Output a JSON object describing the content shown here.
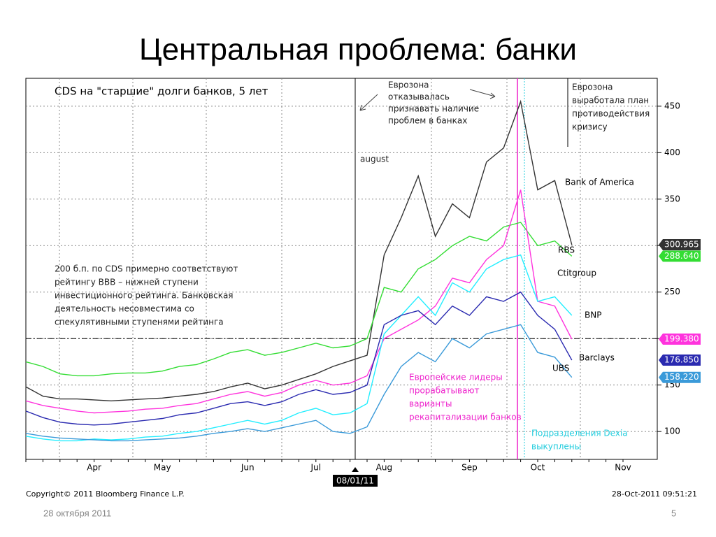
{
  "slide": {
    "title": "Центральная проблема: банки",
    "date": "28 октября 2011",
    "page": "5"
  },
  "chart_data": {
    "type": "line",
    "title": "CDS на \"старшие\" долги банков, 5 лет",
    "categories": [
      null,
      null,
      null,
      null,
      "Apr",
      null,
      null,
      null,
      "May",
      null,
      null,
      null,
      null,
      "Jun",
      null,
      null,
      null,
      "Jul",
      null,
      null,
      null,
      "Aug",
      null,
      null,
      null,
      null,
      "Sep",
      null,
      null,
      null,
      "Oct",
      null,
      null,
      null,
      null,
      "Nov"
    ],
    "series": [
      {
        "name": "Bank of America",
        "color": "#333333",
        "end_label": "300.965",
        "values": [
          148,
          138,
          135,
          135,
          134,
          133,
          134,
          135,
          136,
          138,
          140,
          143,
          148,
          152,
          146,
          150,
          156,
          162,
          170,
          176,
          182,
          290,
          330,
          375,
          310,
          345,
          330,
          390,
          405,
          455,
          360,
          370,
          300.965,
          null,
          null,
          null
        ]
      },
      {
        "name": "RBS",
        "color": "#33dd33",
        "end_label": "288.640",
        "values": [
          175,
          170,
          162,
          160,
          160,
          162,
          163,
          163,
          165,
          170,
          172,
          178,
          185,
          188,
          182,
          185,
          190,
          195,
          190,
          192,
          200,
          255,
          250,
          275,
          285,
          300,
          310,
          305,
          320,
          325,
          300,
          305,
          288.64,
          null,
          null,
          null
        ]
      },
      {
        "name": "Ctitgroup",
        "color": "#ff33dd",
        "end_label": "199.380",
        "values": [
          133,
          128,
          125,
          122,
          120,
          121,
          122,
          124,
          125,
          128,
          130,
          135,
          140,
          143,
          138,
          142,
          150,
          155,
          150,
          152,
          160,
          200,
          210,
          220,
          235,
          265,
          260,
          285,
          300,
          360,
          240,
          235,
          199.38,
          null,
          null,
          null
        ]
      },
      {
        "name": "BNP",
        "color": "#22eeff",
        "values": [
          95,
          92,
          90,
          90,
          92,
          91,
          92,
          94,
          95,
          98,
          100,
          104,
          108,
          112,
          108,
          112,
          120,
          125,
          118,
          120,
          130,
          205,
          225,
          245,
          225,
          260,
          250,
          275,
          285,
          290,
          240,
          245,
          225,
          null,
          null,
          null
        ]
      },
      {
        "name": "Barclays",
        "color": "#2a2ab0",
        "end_label": "176.850",
        "values": [
          122,
          115,
          110,
          108,
          107,
          108,
          110,
          112,
          114,
          118,
          120,
          125,
          130,
          132,
          128,
          132,
          140,
          145,
          140,
          142,
          150,
          215,
          225,
          230,
          215,
          235,
          225,
          245,
          240,
          250,
          225,
          210,
          176.85,
          null,
          null,
          null
        ]
      },
      {
        "name": "UBS",
        "color": "#3a9ad9",
        "end_label": "158.220",
        "values": [
          98,
          95,
          93,
          92,
          91,
          90,
          90,
          91,
          92,
          93,
          95,
          98,
          100,
          103,
          100,
          104,
          108,
          112,
          100,
          98,
          105,
          140,
          170,
          185,
          175,
          200,
          190,
          205,
          210,
          215,
          185,
          180,
          158.22,
          null,
          null,
          null
        ]
      }
    ],
    "ylim": [
      70,
      480
    ],
    "yticks": [
      100,
      150,
      200,
      250,
      300,
      350,
      400,
      450
    ],
    "grid": true,
    "reference_line": 200,
    "date_marker": "08/01/11",
    "copyright": "Copyright© 2011 Bloomberg Finance L.P.",
    "timestamp": "28-Oct-2011 09:51:21",
    "annotations": [
      {
        "color": "#222222",
        "lines": [
          "Еврозона",
          "отказывалась",
          "признавать наличие",
          "проблем в банках"
        ]
      },
      {
        "color": "#222222",
        "lines": [
          "Еврозона",
          "выработала план",
          "противодействия",
          "кризису"
        ]
      },
      {
        "color": "#222222",
        "lines": [
          "200 б.п. по CDS примерно соответствуют",
          "рейтингу BBB – нижней ступени",
          "инвестиционного рейтинга. Банковская",
          "деятельность несовместима со",
          "спекулятивными ступенями рейтинга"
        ]
      },
      {
        "color": "#ee22cc",
        "lines": [
          "Европейские лидеры",
          "прорабатывают",
          "варианты",
          "рекапитализации банков"
        ]
      },
      {
        "color": "#22ccdd",
        "lines": [
          "Подразделения Dexia",
          "выкуплены"
        ]
      },
      {
        "color": "#222222",
        "lines": [
          "august"
        ]
      }
    ]
  }
}
